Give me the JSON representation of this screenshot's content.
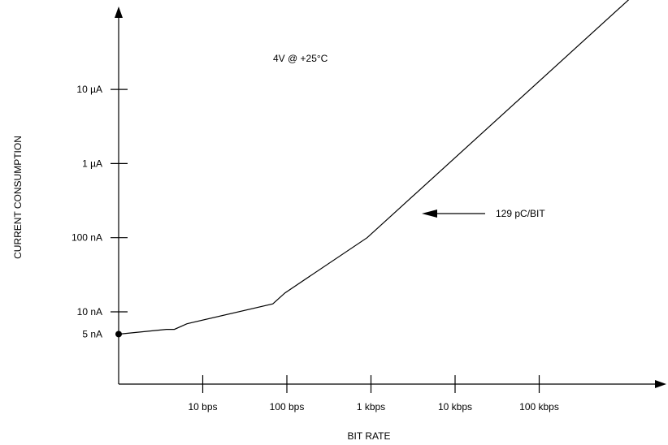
{
  "chart_data": {
    "type": "line",
    "title": "",
    "xlabel": "BIT RATE",
    "ylabel": "CURRENT CONSUMPTION",
    "x_scale": "log",
    "y_scale": "log",
    "xlim_bps": [
      1,
      3000000
    ],
    "ylim_A": [
      1.5e-09,
      0.0002
    ],
    "x_ticks": [
      {
        "label": "10 bps",
        "value": 10
      },
      {
        "label": "100 bps",
        "value": 100
      },
      {
        "label": "1 kbps",
        "value": 1000
      },
      {
        "label": "10 kbps",
        "value": 10000
      },
      {
        "label": "100 kbps",
        "value": 100000
      }
    ],
    "y_ticks": [
      {
        "label": "5 nA",
        "value": 5e-09
      },
      {
        "label": "10 nA",
        "value": 1e-08
      },
      {
        "label": "100 nA",
        "value": 1e-07
      },
      {
        "label": "1 µA",
        "value": 1e-06
      },
      {
        "label": "10 µA",
        "value": 1e-05
      }
    ],
    "series": [
      {
        "name": "",
        "points": [
          {
            "x": 1,
            "y": 5e-09
          },
          {
            "x": 3.7,
            "y": 5.8e-09
          },
          {
            "x": 4.6,
            "y": 5.8e-09
          },
          {
            "x": 6.5,
            "y": 6.9e-09
          },
          {
            "x": 68,
            "y": 1.28e-08
          },
          {
            "x": 95,
            "y": 1.8e-08
          },
          {
            "x": 900,
            "y": 1e-07
          },
          {
            "x": 1250000,
            "y": 0.000175
          }
        ]
      }
    ],
    "marker_label": "5 nA",
    "annotations": [
      {
        "text": "4V @ +25°C"
      },
      {
        "text": "129 pC/BIT",
        "arrow": true
      }
    ],
    "grid": false
  }
}
